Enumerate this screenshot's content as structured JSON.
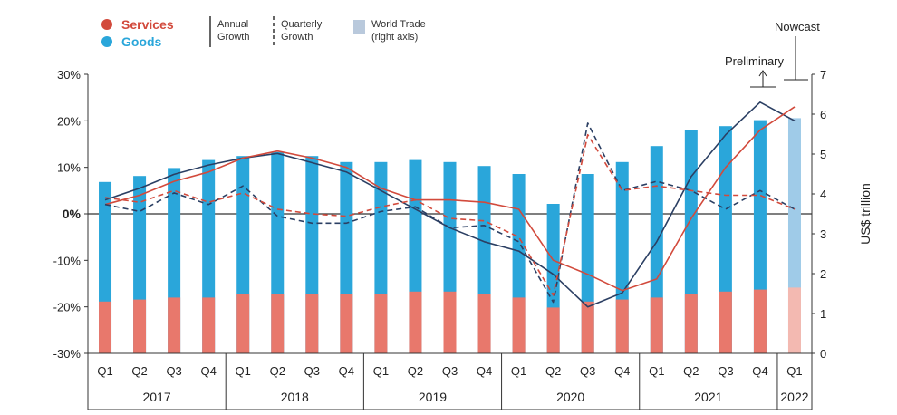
{
  "chart_data": {
    "type": "bar+line",
    "x_quarters": [
      "Q1",
      "Q2",
      "Q3",
      "Q4",
      "Q1",
      "Q2",
      "Q3",
      "Q4",
      "Q1",
      "Q2",
      "Q3",
      "Q4",
      "Q1",
      "Q2",
      "Q3",
      "Q4",
      "Q1",
      "Q2",
      "Q3",
      "Q4",
      "Q1"
    ],
    "years": [
      {
        "label": "2017",
        "span": 4
      },
      {
        "label": "2018",
        "span": 4
      },
      {
        "label": "2019",
        "span": 4
      },
      {
        "label": "2020",
        "span": 4
      },
      {
        "label": "2021",
        "span": 4
      },
      {
        "label": "2022",
        "span": 1
      }
    ],
    "left_axis": {
      "ticks": [
        "30%",
        "20%",
        "10%",
        "0%",
        "-10%",
        "-20%",
        "-30%"
      ],
      "range": [
        -30,
        30
      ]
    },
    "right_axis": {
      "label": "US$ trillion",
      "ticks": [
        "7",
        "6",
        "5",
        "4",
        "3",
        "2",
        "1",
        "0"
      ],
      "range": [
        0,
        7
      ]
    },
    "legend": {
      "services": "Services",
      "goods": "Goods",
      "annual_growth": "Annual\nGrowth",
      "quarterly_growth": "Quarterly\nGrowth",
      "world_trade": "World Trade\n(right axis)"
    },
    "annotations": {
      "preliminary": "Preliminary",
      "nowcast": "Nowcast"
    },
    "colors": {
      "goods": "#2aa6da",
      "goods_light": "#9fcbe8",
      "services": "#e8786c",
      "services_light": "#f3b9b1",
      "services_line": "#d24a3c",
      "goods_line": "#2b3f63"
    },
    "series": [
      {
        "name": "Goods",
        "kind": "bar",
        "axis": "right",
        "values": [
          4.3,
          4.45,
          4.65,
          4.85,
          4.95,
          5.05,
          4.95,
          4.8,
          4.8,
          4.85,
          4.8,
          4.7,
          4.5,
          3.75,
          4.5,
          4.8,
          5.2,
          5.6,
          5.7,
          5.85,
          5.9
        ]
      },
      {
        "name": "Services",
        "kind": "bar",
        "axis": "right",
        "values": [
          1.3,
          1.35,
          1.4,
          1.4,
          1.5,
          1.5,
          1.5,
          1.5,
          1.5,
          1.55,
          1.55,
          1.5,
          1.4,
          1.15,
          1.3,
          1.35,
          1.4,
          1.5,
          1.55,
          1.6,
          1.65
        ]
      },
      {
        "name": "Goods",
        "kind": "annual",
        "values": [
          3,
          5.5,
          8.5,
          10.5,
          12,
          13,
          11,
          9,
          5,
          1,
          -3,
          -6,
          -8,
          -13,
          -20,
          -17,
          -6,
          8,
          17,
          24,
          20
        ]
      },
      {
        "name": "Services",
        "kind": "annual",
        "values": [
          2,
          4,
          7,
          9,
          12,
          13.5,
          12,
          10,
          5.5,
          3,
          3,
          2.5,
          1,
          -10,
          -13,
          -16.5,
          -14,
          -1,
          10,
          18,
          23
        ]
      },
      {
        "name": "Goods",
        "kind": "quarterly",
        "values": [
          2,
          0.5,
          4.5,
          2,
          6,
          -0.5,
          -2,
          -2,
          0.5,
          1.5,
          -3,
          -2.5,
          -6,
          -19,
          19.5,
          5,
          7,
          5,
          1,
          5,
          1
        ]
      },
      {
        "name": "Services",
        "kind": "quarterly",
        "values": [
          3.5,
          2.5,
          5,
          2.5,
          4.5,
          1,
          0,
          -0.5,
          1.5,
          3,
          -1,
          -1.5,
          -5,
          -17.5,
          17,
          5,
          6,
          5,
          4,
          4,
          1
        ]
      }
    ]
  }
}
